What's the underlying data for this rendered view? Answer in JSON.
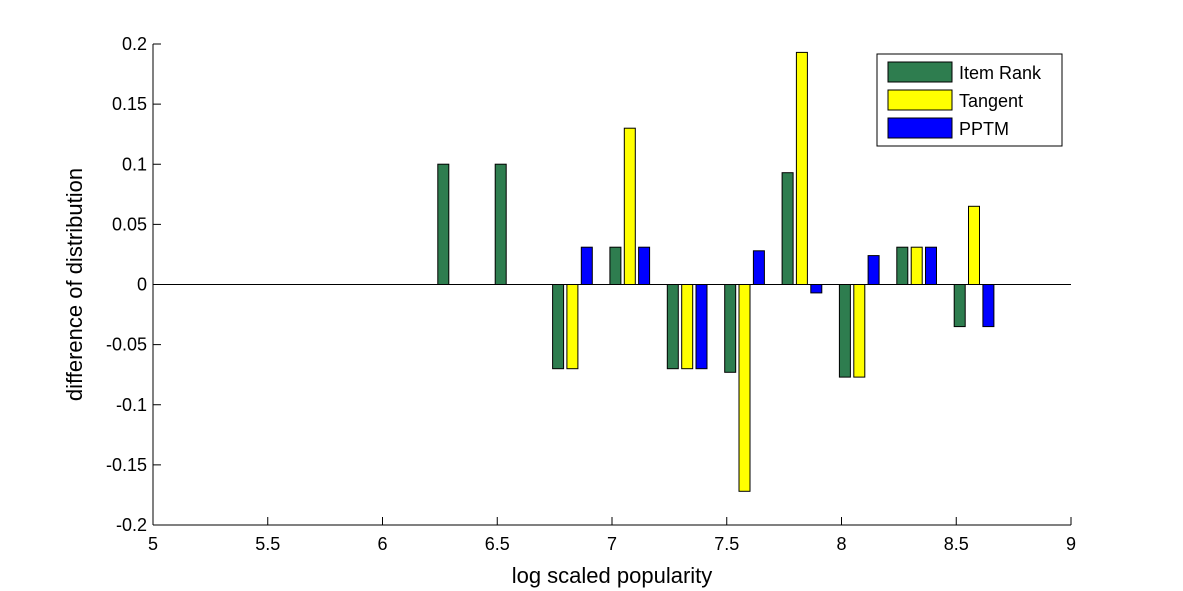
{
  "chart_data": {
    "type": "bar",
    "xlabel": "log scaled popularity",
    "ylabel": "difference of distribution",
    "xlim": [
      5,
      9
    ],
    "ylim": [
      -0.2,
      0.2
    ],
    "xticks": [
      "5",
      "5.5",
      "6",
      "6.5",
      "7",
      "7.5",
      "8",
      "8.5",
      "9"
    ],
    "yticks": [
      "-0.2",
      "-0.15",
      "-0.1",
      "-0.05",
      "0",
      "0.05",
      "0.1",
      "0.15",
      "0.2"
    ],
    "x_centers": [
      6.375,
      6.625,
      6.875,
      7.125,
      7.375,
      7.625,
      7.875,
      8.125,
      8.375,
      8.625
    ],
    "legend_position": "top-right",
    "series": [
      {
        "name": "Item Rank",
        "color": "#2e7d4f",
        "values": [
          0.1,
          0.1,
          -0.07,
          0.031,
          -0.07,
          -0.073,
          0.093,
          -0.077,
          0.031,
          -0.035
        ]
      },
      {
        "name": "Tangent",
        "color": "#ffff00",
        "values": [
          0,
          0,
          -0.07,
          0.13,
          -0.07,
          -0.172,
          0.193,
          -0.077,
          0.031,
          0.065
        ]
      },
      {
        "name": "PPTM",
        "color": "#0000ff",
        "values": [
          0,
          0,
          0.031,
          0.031,
          -0.07,
          0.028,
          -0.007,
          0.024,
          0.031,
          -0.035
        ]
      }
    ]
  }
}
